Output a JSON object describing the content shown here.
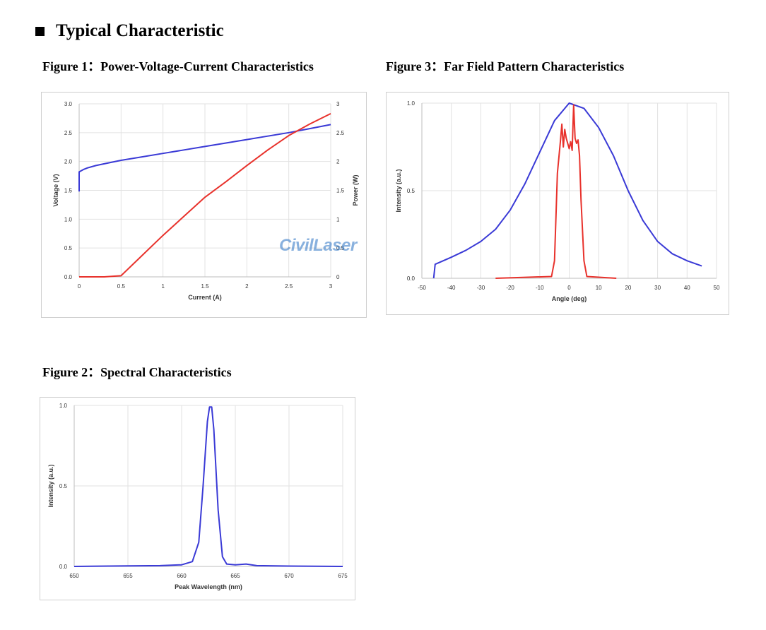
{
  "section_title": "Typical Characteristic",
  "figures": {
    "fig1_title": "Figure 1：Power-Voltage-Current Characteristics",
    "fig2_title": "Figure 2：Spectral Characteristics",
    "fig3_title": "Figure 3：Far Field Pattern Characteristics"
  },
  "watermark": "CivilLaser",
  "colors": {
    "blue": "#3a3ad6",
    "red": "#e8322c"
  },
  "chart_data": [
    {
      "id": "piv",
      "type": "line",
      "title": "",
      "xlabel": "Current (A)",
      "ylabel_left": "Voltage (V)",
      "ylabel_right": "Power (W)",
      "xlim": [
        0,
        3
      ],
      "ylim_left": [
        0,
        3
      ],
      "ylim_right": [
        0,
        3
      ],
      "x_ticks": [
        "0",
        "0.5",
        "1",
        "1.5",
        "2",
        "2.5",
        "3"
      ],
      "y_left_ticks": [
        "0.0",
        "0.5",
        "1.0",
        "1.5",
        "2.0",
        "2.5",
        "3.0"
      ],
      "y_right_ticks": [
        "0",
        "0.5",
        "1",
        "1.5",
        "2",
        "2.5",
        "3"
      ],
      "grid": true,
      "series": [
        {
          "axis": "left",
          "color": "#3a3ad6",
          "x": [
            0,
            0,
            0.05,
            0.1,
            0.2,
            0.3,
            0.5,
            0.75,
            1.0,
            1.25,
            1.5,
            1.75,
            2.0,
            2.25,
            2.5,
            2.75,
            3.0
          ],
          "y": [
            1.48,
            1.82,
            1.86,
            1.89,
            1.93,
            1.96,
            2.02,
            2.08,
            2.14,
            2.2,
            2.26,
            2.32,
            2.38,
            2.44,
            2.5,
            2.57,
            2.64
          ]
        },
        {
          "axis": "right",
          "color": "#e8322c",
          "x": [
            0,
            0.3,
            0.5,
            0.7,
            1.0,
            1.25,
            1.5,
            1.75,
            2.0,
            2.25,
            2.5,
            2.75,
            3.0
          ],
          "y": [
            0,
            0,
            0.02,
            0.3,
            0.72,
            1.05,
            1.38,
            1.65,
            1.93,
            2.2,
            2.45,
            2.65,
            2.83
          ]
        }
      ]
    },
    {
      "id": "ff",
      "type": "line",
      "title": "",
      "xlabel": "Angle (deg)",
      "ylabel": "Intensity (a.u.)",
      "xlim": [
        -50,
        50
      ],
      "ylim": [
        0,
        1
      ],
      "x_ticks": [
        "-50",
        "-40",
        "-30",
        "-20",
        "-10",
        "0",
        "10",
        "20",
        "30",
        "40",
        "50"
      ],
      "y_ticks": [
        "0.0",
        "0.5",
        "1.0"
      ],
      "grid": true,
      "series": [
        {
          "color": "#3a3ad6",
          "x": [
            -46,
            -45.5,
            -40,
            -35,
            -30,
            -25,
            -20,
            -15,
            -10,
            -5,
            0,
            5,
            10,
            15,
            20,
            25,
            30,
            35,
            40,
            45
          ],
          "y": [
            0,
            0.08,
            0.12,
            0.16,
            0.21,
            0.28,
            0.39,
            0.54,
            0.72,
            0.9,
            1.0,
            0.97,
            0.86,
            0.7,
            0.5,
            0.33,
            0.21,
            0.14,
            0.1,
            0.07
          ]
        },
        {
          "color": "#e8322c",
          "x": [
            -25,
            -6,
            -5,
            -4,
            -3,
            -2.5,
            -2,
            -1.5,
            -1,
            0,
            0.5,
            1,
            1.5,
            2,
            2.5,
            3,
            3.5,
            4,
            5,
            6,
            16
          ],
          "y": [
            0,
            0.01,
            0.1,
            0.6,
            0.78,
            0.88,
            0.75,
            0.85,
            0.8,
            0.74,
            0.78,
            0.73,
            0.99,
            0.8,
            0.77,
            0.79,
            0.7,
            0.45,
            0.1,
            0.01,
            0
          ]
        }
      ]
    },
    {
      "id": "spec",
      "type": "line",
      "title": "",
      "xlabel": "Peak Wavelength (nm)",
      "ylabel": "Intensity (a.u.)",
      "xlim": [
        650,
        675
      ],
      "ylim": [
        0,
        1
      ],
      "x_ticks": [
        "650",
        "655",
        "660",
        "665",
        "670",
        "675"
      ],
      "y_ticks": [
        "0.0",
        "0.5",
        "1.0"
      ],
      "grid": true,
      "series": [
        {
          "color": "#3a3ad6",
          "x": [
            650,
            655,
            658,
            660,
            661,
            661.6,
            662.0,
            662.4,
            662.6,
            662.8,
            663.0,
            663.4,
            663.8,
            664.2,
            665,
            666,
            667,
            670,
            675
          ],
          "y": [
            0.0,
            0.003,
            0.005,
            0.01,
            0.03,
            0.15,
            0.5,
            0.9,
            0.99,
            0.99,
            0.85,
            0.35,
            0.06,
            0.015,
            0.01,
            0.015,
            0.005,
            0.002,
            0.0
          ]
        }
      ]
    }
  ]
}
